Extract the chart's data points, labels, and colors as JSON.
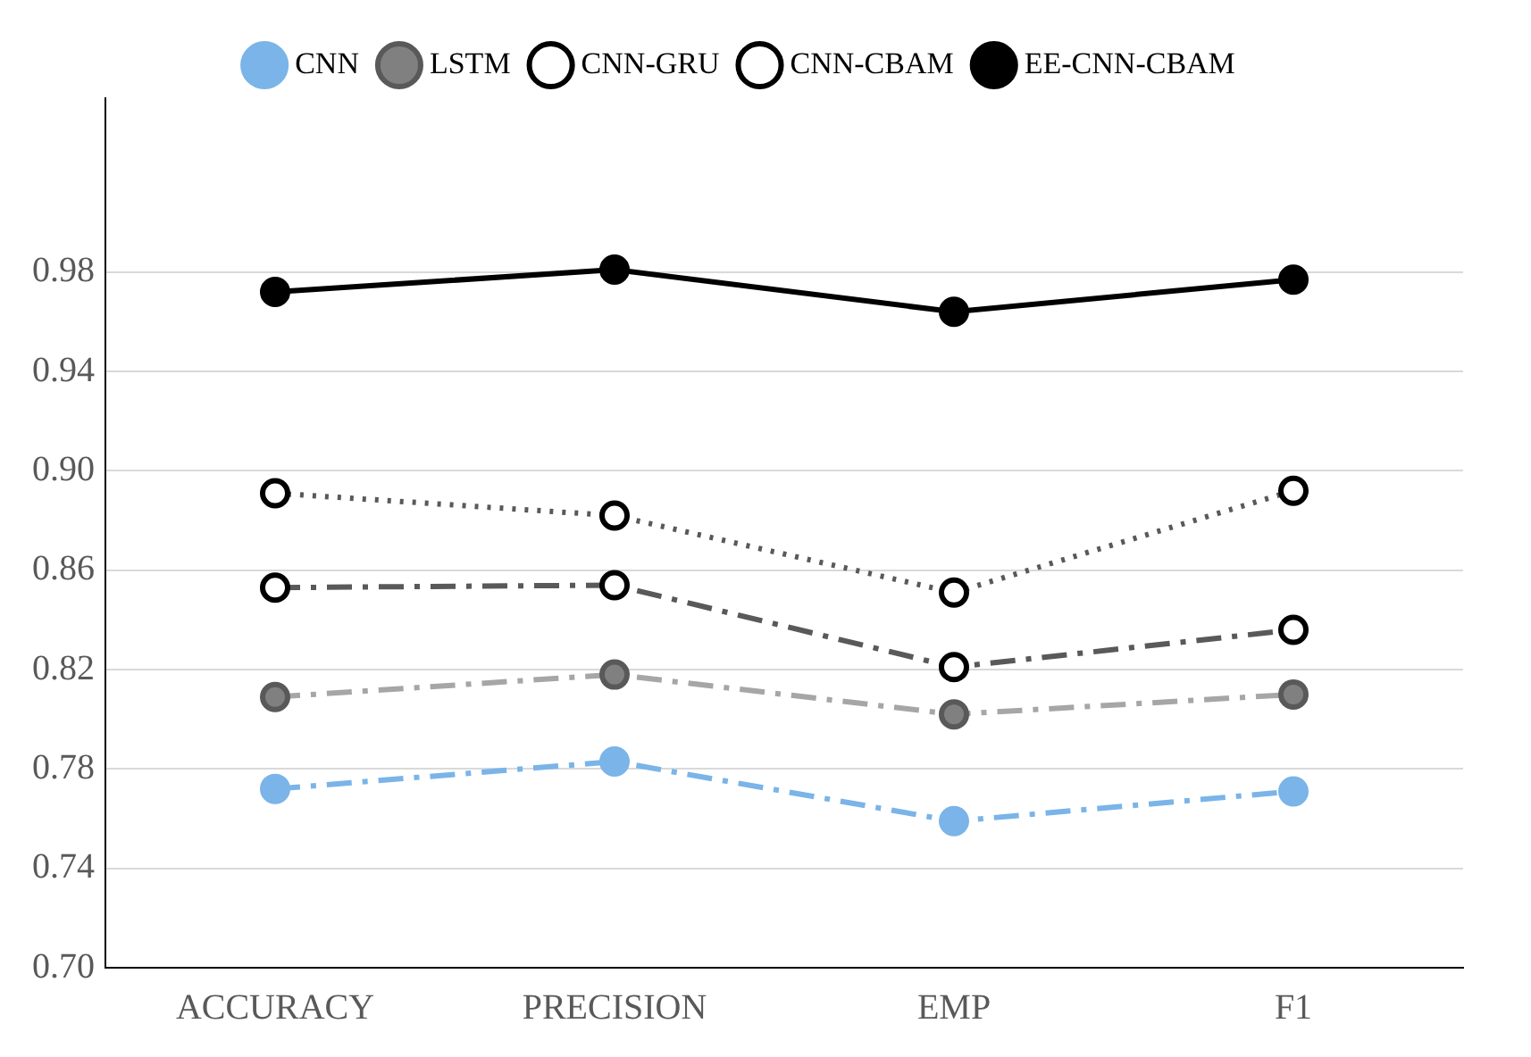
{
  "chart_data": {
    "type": "line",
    "categories": [
      "ACCURACY",
      "PRECISION",
      "EMP",
      "F1"
    ],
    "series": [
      {
        "name": "CNN",
        "color": "#7ab4e8",
        "line_style": "dashed",
        "values": [
          0.772,
          0.783,
          0.759,
          0.771
        ]
      },
      {
        "name": "LSTM",
        "color": "#a6a6a6",
        "line_style": "dashed",
        "values": [
          0.809,
          0.818,
          0.802,
          0.81
        ]
      },
      {
        "name": "CNN-GRU",
        "color": "#595959",
        "line_style": "dashed",
        "values": [
          0.853,
          0.854,
          0.821,
          0.836
        ]
      },
      {
        "name": "CNN-CBAM",
        "color": "#595959",
        "line_style": "dotted",
        "values": [
          0.891,
          0.882,
          0.851,
          0.892
        ]
      },
      {
        "name": "EE-CNN-CBAM",
        "color": "#000000",
        "line_style": "solid",
        "values": [
          0.972,
          0.981,
          0.964,
          0.977
        ]
      }
    ],
    "ylim": [
      0.7,
      1.05
    ],
    "yticks": [
      {
        "value": 0.7,
        "label": "0.70"
      },
      0.74,
      0.78,
      0.82,
      0.86,
      {
        "value": 0.9,
        "label": "0.90"
      },
      0.94,
      0.98
    ],
    "grid": "y",
    "legend": "top",
    "marker": "circle"
  }
}
